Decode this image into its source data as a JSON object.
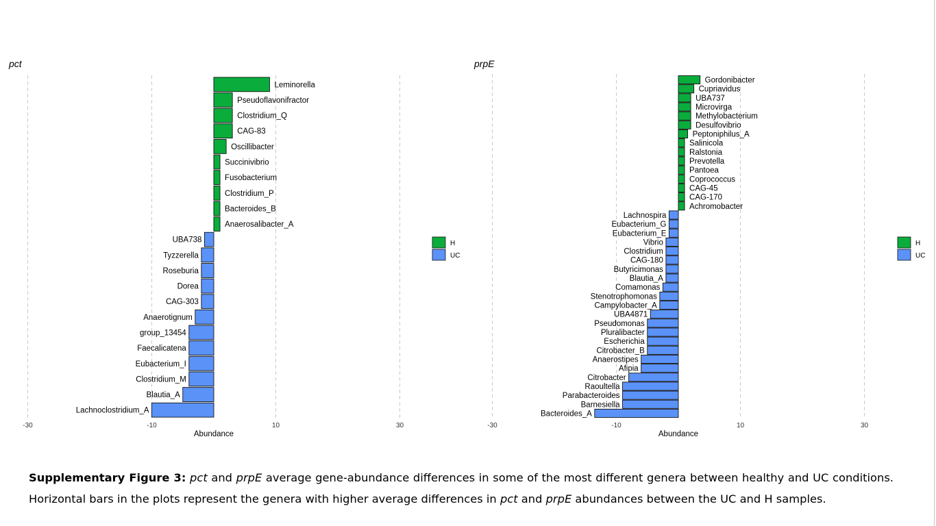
{
  "caption": {
    "label": "Supplementary Figure 3:",
    "t1": "pct",
    "t2": " and ",
    "t3": "prpE",
    "t4": " average gene-abundance differences in some of the most different genera between healthy and UC conditions. Horizontal bars in the plots represent the genera with higher average differences in ",
    "t5": "pct",
    "t6": " and ",
    "t7": "prpE",
    "t8": " abundances between the UC and H samples."
  },
  "colors": {
    "H": "#0aad3c",
    "UC": "#5b92f7"
  },
  "chart_data": [
    {
      "type": "bar",
      "orientation": "horizontal",
      "title": "pct",
      "xlabel": "Abundance",
      "xlim": [
        -30,
        30
      ],
      "xticks": [
        -30,
        -10,
        10,
        30
      ],
      "grid": "vertical dashed",
      "legend": {
        "placement": "right",
        "entries": [
          "H",
          "UC"
        ]
      },
      "bars": [
        {
          "label": "Leminorella",
          "value": 9.0,
          "group": "H"
        },
        {
          "label": "Pseudoflavonifractor",
          "value": 3.0,
          "group": "H"
        },
        {
          "label": "Clostridium_Q",
          "value": 3.0,
          "group": "H"
        },
        {
          "label": "CAG-83",
          "value": 3.0,
          "group": "H"
        },
        {
          "label": "Oscillibacter",
          "value": 2.0,
          "group": "H"
        },
        {
          "label": "Succinivibrio",
          "value": 1.0,
          "group": "H"
        },
        {
          "label": "Fusobacterium",
          "value": 1.0,
          "group": "H"
        },
        {
          "label": "Clostridium_P",
          "value": 1.0,
          "group": "H"
        },
        {
          "label": "Bacteroides_B",
          "value": 1.0,
          "group": "H"
        },
        {
          "label": "Anaerosalibacter_A",
          "value": 1.0,
          "group": "H"
        },
        {
          "label": "UBA738",
          "value": -1.5,
          "group": "UC"
        },
        {
          "label": "Tyzzerella",
          "value": -2.0,
          "group": "UC"
        },
        {
          "label": "Roseburia",
          "value": -2.0,
          "group": "UC"
        },
        {
          "label": "Dorea",
          "value": -2.0,
          "group": "UC"
        },
        {
          "label": "CAG-303",
          "value": -2.0,
          "group": "UC"
        },
        {
          "label": "Anaerotignum",
          "value": -3.0,
          "group": "UC"
        },
        {
          "label": "group_13454",
          "value": -4.0,
          "group": "UC"
        },
        {
          "label": "Faecalicatena",
          "value": -4.0,
          "group": "UC"
        },
        {
          "label": "Eubacterium_I",
          "value": -4.0,
          "group": "UC"
        },
        {
          "label": "Clostridium_M",
          "value": -4.0,
          "group": "UC"
        },
        {
          "label": "Blautia_A",
          "value": -5.0,
          "group": "UC"
        },
        {
          "label": "Lachnoclostridium_A",
          "value": -10.0,
          "group": "UC"
        }
      ]
    },
    {
      "type": "bar",
      "orientation": "horizontal",
      "title": "prpE",
      "xlabel": "Abundance",
      "xlim": [
        -30,
        30
      ],
      "xticks": [
        -30,
        -10,
        10,
        30
      ],
      "grid": "vertical dashed",
      "legend": {
        "placement": "right",
        "entries": [
          "H",
          "UC"
        ]
      },
      "bars": [
        {
          "label": "Gordonibacter",
          "value": 3.5,
          "group": "H"
        },
        {
          "label": "Cupriavidus",
          "value": 2.5,
          "group": "H"
        },
        {
          "label": "UBA737",
          "value": 2.0,
          "group": "H"
        },
        {
          "label": "Microvirga",
          "value": 2.0,
          "group": "H"
        },
        {
          "label": "Methylobacterium",
          "value": 2.0,
          "group": "H"
        },
        {
          "label": "Desulfovibrio",
          "value": 2.0,
          "group": "H"
        },
        {
          "label": "Peptoniphilus_A",
          "value": 1.5,
          "group": "H"
        },
        {
          "label": "Salinicola",
          "value": 1.0,
          "group": "H"
        },
        {
          "label": "Ralstonia",
          "value": 1.0,
          "group": "H"
        },
        {
          "label": "Prevotella",
          "value": 1.0,
          "group": "H"
        },
        {
          "label": "Pantoea",
          "value": 1.0,
          "group": "H"
        },
        {
          "label": "Coprococcus",
          "value": 1.0,
          "group": "H"
        },
        {
          "label": "CAG-45",
          "value": 1.0,
          "group": "H"
        },
        {
          "label": "CAG-170",
          "value": 1.0,
          "group": "H"
        },
        {
          "label": "Achromobacter",
          "value": 1.0,
          "group": "H"
        },
        {
          "label": "Lachnospira",
          "value": -1.5,
          "group": "UC"
        },
        {
          "label": "Eubacterium_G",
          "value": -1.5,
          "group": "UC"
        },
        {
          "label": "Eubacterium_E",
          "value": -1.5,
          "group": "UC"
        },
        {
          "label": "Vibrio",
          "value": -2.0,
          "group": "UC"
        },
        {
          "label": "Clostridium",
          "value": -2.0,
          "group": "UC"
        },
        {
          "label": "CAG-180",
          "value": -2.0,
          "group": "UC"
        },
        {
          "label": "Butyricimonas",
          "value": -2.0,
          "group": "UC"
        },
        {
          "label": "Blautia_A",
          "value": -2.0,
          "group": "UC"
        },
        {
          "label": "Comamonas",
          "value": -2.5,
          "group": "UC"
        },
        {
          "label": "Stenotrophomonas",
          "value": -3.0,
          "group": "UC"
        },
        {
          "label": "Campylobacter_A",
          "value": -3.0,
          "group": "UC"
        },
        {
          "label": "UBA4871",
          "value": -4.5,
          "group": "UC"
        },
        {
          "label": "Pseudomonas",
          "value": -5.0,
          "group": "UC"
        },
        {
          "label": "Pluralibacter",
          "value": -5.0,
          "group": "UC"
        },
        {
          "label": "Escherichia",
          "value": -5.0,
          "group": "UC"
        },
        {
          "label": "Citrobacter_B",
          "value": -5.0,
          "group": "UC"
        },
        {
          "label": "Anaerostipes",
          "value": -6.0,
          "group": "UC"
        },
        {
          "label": "Afipia",
          "value": -6.0,
          "group": "UC"
        },
        {
          "label": "Citrobacter",
          "value": -8.0,
          "group": "UC"
        },
        {
          "label": "Raoultella",
          "value": -9.0,
          "group": "UC"
        },
        {
          "label": "Parabacteroides",
          "value": -9.0,
          "group": "UC"
        },
        {
          "label": "Barnesiella",
          "value": -9.0,
          "group": "UC"
        },
        {
          "label": "Bacteroides_A",
          "value": -13.5,
          "group": "UC"
        }
      ]
    }
  ]
}
